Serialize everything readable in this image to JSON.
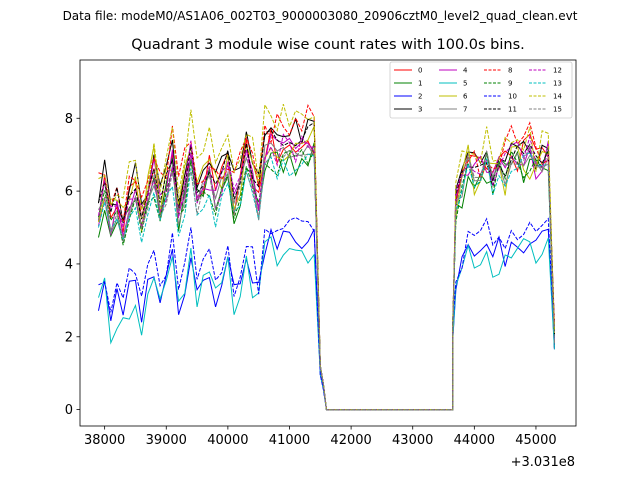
{
  "file_label": "Data file: modeM0/AS1A06_002T03_9000003080_20906cztM0_level2_quad_clean.evt",
  "chart_data": {
    "type": "line",
    "title": "Quadrant 3 module wise count rates with 100.0s bins.",
    "xlabel": "",
    "ylabel": "",
    "x_offset_label": "+3.031e8",
    "xlim": [
      37600,
      45650
    ],
    "ylim": [
      -0.45,
      9.6
    ],
    "xticks": [
      38000,
      39000,
      40000,
      41000,
      42000,
      43000,
      44000,
      45000
    ],
    "xtick_labels": [
      "38000",
      "39000",
      "40000",
      "41000",
      "42000",
      "43000",
      "44000",
      "45000"
    ],
    "yticks": [
      0,
      2,
      4,
      6,
      8
    ],
    "ytick_labels": [
      "0",
      "2",
      "4",
      "6",
      "8"
    ],
    "legend_location": "upper right",
    "gap": {
      "start": 41650,
      "end": 43650
    },
    "x_active": [
      37900,
      38000,
      38100,
      38200,
      38300,
      38400,
      38500,
      38600,
      38700,
      38800,
      38900,
      39000,
      39100,
      39200,
      39300,
      39400,
      39500,
      39600,
      39700,
      39800,
      39900,
      40000,
      40100,
      40200,
      40300,
      40400,
      40500,
      40600,
      40700,
      40800,
      40900,
      41000,
      41100,
      41200,
      41300,
      41400,
      41500,
      41550,
      41600
    ],
    "x_late": [
      43650,
      43700,
      43800,
      43900,
      44000,
      44100,
      44200,
      44300,
      44400,
      44500,
      44600,
      44700,
      44800,
      44900,
      45000,
      45100,
      45200,
      45300
    ],
    "series": [
      {
        "name": "0",
        "color": "#ff0000",
        "dash": false,
        "offset": 0.3,
        "noise": 0.5,
        "late": 0.1
      },
      {
        "name": "1",
        "color": "#008000",
        "dash": false,
        "offset": 0.0,
        "noise": 0.5,
        "late": -0.2
      },
      {
        "name": "2",
        "color": "#0000ff",
        "dash": false,
        "offset": -2.3,
        "noise": 0.4,
        "late": -2.2
      },
      {
        "name": "3",
        "color": "#000000",
        "dash": false,
        "offset": 0.7,
        "noise": 0.4,
        "late": 0.2
      },
      {
        "name": "4",
        "color": "#bf00bf",
        "dash": false,
        "offset": 0.2,
        "noise": 0.4,
        "late": 0.0
      },
      {
        "name": "5",
        "color": "#00bfbf",
        "dash": false,
        "offset": -2.6,
        "noise": 0.5,
        "late": -2.6
      },
      {
        "name": "6",
        "color": "#bfbf00",
        "dash": false,
        "offset": 0.4,
        "noise": 0.6,
        "late": -0.1
      },
      {
        "name": "7",
        "color": "#808080",
        "dash": false,
        "offset": 0.1,
        "noise": 0.3,
        "late": -0.1
      },
      {
        "name": "8",
        "color": "#ff0000",
        "dash": true,
        "offset": 0.8,
        "noise": 0.6,
        "late": 0.3
      },
      {
        "name": "9",
        "color": "#008000",
        "dash": true,
        "offset": -0.1,
        "noise": 0.4,
        "late": -0.2
      },
      {
        "name": "10",
        "color": "#0000ff",
        "dash": true,
        "offset": -2.0,
        "noise": 0.4,
        "late": -2.0
      },
      {
        "name": "11",
        "color": "#000000",
        "dash": true,
        "offset": 0.5,
        "noise": 0.3,
        "late": 0.1
      },
      {
        "name": "12",
        "color": "#bf00bf",
        "dash": true,
        "offset": 0.3,
        "noise": 0.4,
        "late": 0.2
      },
      {
        "name": "13",
        "color": "#00bfbf",
        "dash": true,
        "offset": -0.2,
        "noise": 0.3,
        "late": -0.2
      },
      {
        "name": "14",
        "color": "#bfbf00",
        "dash": true,
        "offset": 1.0,
        "noise": 0.6,
        "late": 0.4
      },
      {
        "name": "15",
        "color": "#808080",
        "dash": true,
        "offset": 0.0,
        "noise": 0.3,
        "late": 0.0
      }
    ]
  }
}
